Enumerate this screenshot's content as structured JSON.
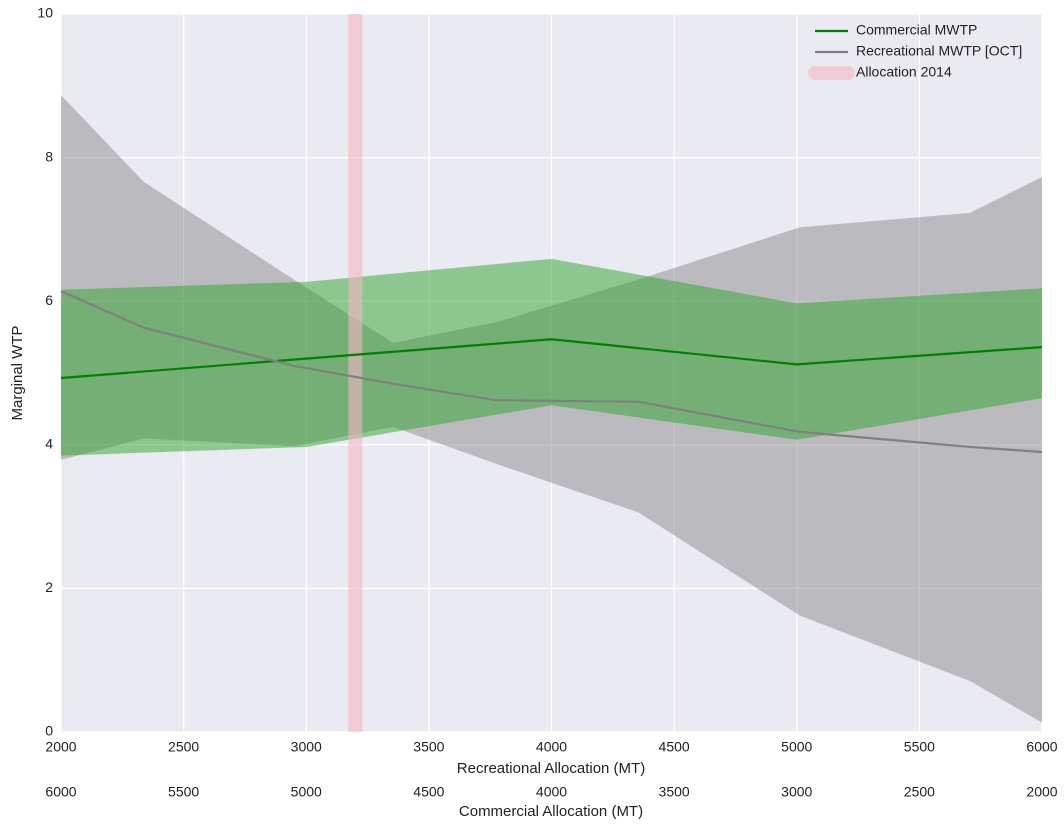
{
  "chart_data": {
    "type": "line-band",
    "xlabel": "Recreational Allocation (MT)",
    "x2label": "Commercial Allocation (MT)",
    "ylabel": "Marginal WTP",
    "xlim": [
      2000,
      6000
    ],
    "xticks": [
      2000,
      2500,
      3000,
      3500,
      4000,
      4500,
      5000,
      5500,
      6000
    ],
    "x2lim": [
      6000,
      2000
    ],
    "x2ticks": [
      6000,
      5500,
      5000,
      4500,
      4000,
      3500,
      3000,
      2500,
      2000
    ],
    "ylim": [
      0,
      10
    ],
    "yticks": [
      0,
      2,
      4,
      6,
      8,
      10
    ],
    "grid": true,
    "legend": "upper right",
    "series": [
      {
        "name": "Commercial MWTP",
        "color": "#008000",
        "band_color": "#2ea42e",
        "x": [
          2000,
          3000,
          4000,
          5000,
          6000
        ],
        "values": [
          4.93,
          5.2,
          5.47,
          5.12,
          5.36
        ],
        "upper": [
          6.16,
          6.27,
          6.59,
          5.97,
          6.18
        ],
        "lower": [
          3.85,
          3.97,
          4.55,
          4.07,
          4.65
        ]
      },
      {
        "name": "Recreational MWTP [OCT]",
        "color": "#808080",
        "band_color": "#808080",
        "x": [
          2000,
          2338,
          2950,
          3354,
          3778,
          4353,
          5013,
          5706,
          6000
        ],
        "values": [
          6.14,
          5.63,
          5.1,
          4.85,
          4.62,
          4.6,
          4.18,
          3.97,
          3.9
        ],
        "upper": [
          8.87,
          7.66,
          6.3,
          5.42,
          5.71,
          6.3,
          7.03,
          7.23,
          7.73
        ],
        "lower": [
          3.79,
          4.09,
          3.98,
          4.25,
          3.73,
          3.06,
          1.62,
          0.71,
          0.13
        ]
      }
    ],
    "vline": {
      "name": "Allocation 2014",
      "x": 3200,
      "color": "#f4b6c2"
    }
  }
}
